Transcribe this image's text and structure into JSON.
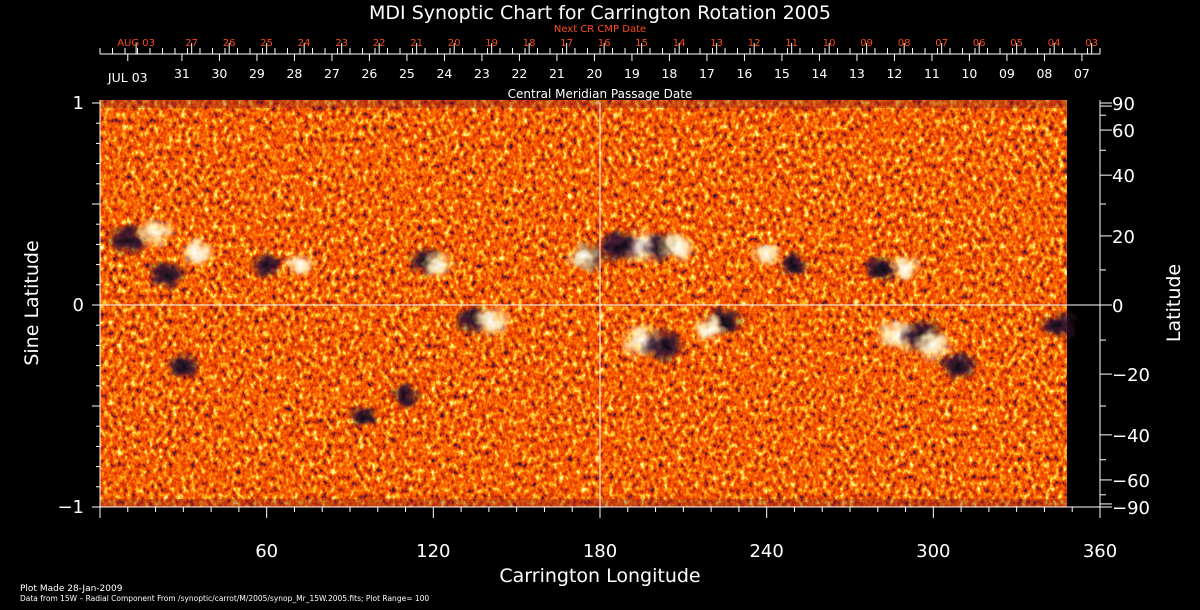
{
  "chart_data": {
    "type": "heatmap",
    "title": "MDI Synoptic Chart for Carrington Rotation 2005",
    "next_cr_label": "Next CR CMP Date",
    "cmp_label": "Central Meridian Passage Date",
    "xlabel": "Carrington Longitude",
    "ylabel_left": "Sine Latitude",
    "ylabel_right": "Latitude",
    "xlim": [
      0,
      360
    ],
    "ylim": [
      -1,
      1
    ],
    "x_ticks": [
      60,
      120,
      180,
      240,
      300,
      360
    ],
    "y_left_ticks": [
      {
        "value": 1,
        "label": "1"
      },
      {
        "value": 0,
        "label": "0"
      },
      {
        "value": -1,
        "label": "−1"
      }
    ],
    "y_right_ticks": [
      {
        "deg": 90,
        "label": "90"
      },
      {
        "deg": 60,
        "label": "60"
      },
      {
        "deg": 40,
        "label": "40"
      },
      {
        "deg": 20,
        "label": "20"
      },
      {
        "deg": 0,
        "label": "0"
      },
      {
        "deg": -20,
        "label": "−20"
      },
      {
        "deg": -40,
        "label": "−40"
      },
      {
        "deg": -60,
        "label": "−60"
      },
      {
        "deg": -90,
        "label": "−90"
      }
    ],
    "next_cr_dates": [
      {
        "lon": 13,
        "label": "AUG 03"
      },
      {
        "lon": 33,
        "label": "27"
      },
      {
        "lon": 46.5,
        "label": "26"
      },
      {
        "lon": 60,
        "label": "25"
      },
      {
        "lon": 73.5,
        "label": "24"
      },
      {
        "lon": 87,
        "label": "23"
      },
      {
        "lon": 100.5,
        "label": "22"
      },
      {
        "lon": 114,
        "label": "21"
      },
      {
        "lon": 127.5,
        "label": "20"
      },
      {
        "lon": 141,
        "label": "19"
      },
      {
        "lon": 154.5,
        "label": "18"
      },
      {
        "lon": 168,
        "label": "17"
      },
      {
        "lon": 181.5,
        "label": "16"
      },
      {
        "lon": 195,
        "label": "15"
      },
      {
        "lon": 208.5,
        "label": "14"
      },
      {
        "lon": 222,
        "label": "13"
      },
      {
        "lon": 235.5,
        "label": "12"
      },
      {
        "lon": 249,
        "label": "11"
      },
      {
        "lon": 262.5,
        "label": "10"
      },
      {
        "lon": 276,
        "label": "09"
      },
      {
        "lon": 289.5,
        "label": "08"
      },
      {
        "lon": 303,
        "label": "07"
      },
      {
        "lon": 316.5,
        "label": "06"
      },
      {
        "lon": 330,
        "label": "05"
      },
      {
        "lon": 343.5,
        "label": "04"
      },
      {
        "lon": 357,
        "label": "03"
      }
    ],
    "cmp_dates": [
      {
        "lon": 10,
        "label": "JUL 03"
      },
      {
        "lon": 29.5,
        "label": "31"
      },
      {
        "lon": 43,
        "label": "30"
      },
      {
        "lon": 56.5,
        "label": "29"
      },
      {
        "lon": 70,
        "label": "28"
      },
      {
        "lon": 83.5,
        "label": "27"
      },
      {
        "lon": 97,
        "label": "26"
      },
      {
        "lon": 110.5,
        "label": "25"
      },
      {
        "lon": 124,
        "label": "24"
      },
      {
        "lon": 137.5,
        "label": "23"
      },
      {
        "lon": 151,
        "label": "22"
      },
      {
        "lon": 164.5,
        "label": "21"
      },
      {
        "lon": 178,
        "label": "20"
      },
      {
        "lon": 191.5,
        "label": "19"
      },
      {
        "lon": 205,
        "label": "18"
      },
      {
        "lon": 218.5,
        "label": "17"
      },
      {
        "lon": 232,
        "label": "16"
      },
      {
        "lon": 245.5,
        "label": "15"
      },
      {
        "lon": 259,
        "label": "14"
      },
      {
        "lon": 272.5,
        "label": "13"
      },
      {
        "lon": 286,
        "label": "12"
      },
      {
        "lon": 299.5,
        "label": "11"
      },
      {
        "lon": 313,
        "label": "10"
      },
      {
        "lon": 326.5,
        "label": "09"
      },
      {
        "lon": 340,
        "label": "08"
      },
      {
        "lon": 353.5,
        "label": "07"
      }
    ],
    "data_coverage_lon": [
      0,
      348
    ],
    "active_regions": [
      {
        "lon": 195,
        "sinlat": 0.29,
        "polarity": "positive",
        "strength": 1.0
      },
      {
        "lon": 187,
        "sinlat": 0.29,
        "polarity": "negative",
        "strength": 1.0
      },
      {
        "lon": 202,
        "sinlat": 0.29,
        "polarity": "negative",
        "strength": 0.8
      },
      {
        "lon": 208,
        "sinlat": 0.29,
        "polarity": "positive",
        "strength": 0.8
      },
      {
        "lon": 195,
        "sinlat": -0.18,
        "polarity": "positive",
        "strength": 1.0
      },
      {
        "lon": 203,
        "sinlat": -0.2,
        "polarity": "negative",
        "strength": 1.0
      },
      {
        "lon": 135,
        "sinlat": -0.07,
        "polarity": "negative",
        "strength": 0.8
      },
      {
        "lon": 141,
        "sinlat": -0.08,
        "polarity": "positive",
        "strength": 0.8
      },
      {
        "lon": 176,
        "sinlat": 0.24,
        "polarity": "negative",
        "strength": 0.7
      },
      {
        "lon": 174,
        "sinlat": 0.24,
        "polarity": "positive",
        "strength": 0.7
      },
      {
        "lon": 287,
        "sinlat": -0.15,
        "polarity": "positive",
        "strength": 1.0
      },
      {
        "lon": 296,
        "sinlat": -0.15,
        "polarity": "negative",
        "strength": 1.0
      },
      {
        "lon": 300,
        "sinlat": -0.2,
        "polarity": "positive",
        "strength": 0.8
      },
      {
        "lon": 309,
        "sinlat": -0.3,
        "polarity": "negative",
        "strength": 0.8
      },
      {
        "lon": 281,
        "sinlat": 0.18,
        "polarity": "negative",
        "strength": 0.6
      },
      {
        "lon": 290,
        "sinlat": 0.18,
        "polarity": "positive",
        "strength": 0.6
      },
      {
        "lon": 117,
        "sinlat": 0.22,
        "polarity": "negative",
        "strength": 0.7
      },
      {
        "lon": 122,
        "sinlat": 0.2,
        "polarity": "positive",
        "strength": 0.6
      },
      {
        "lon": 60,
        "sinlat": 0.2,
        "polarity": "negative",
        "strength": 0.6
      },
      {
        "lon": 72,
        "sinlat": 0.2,
        "polarity": "positive",
        "strength": 0.5
      },
      {
        "lon": 10,
        "sinlat": 0.32,
        "polarity": "negative",
        "strength": 0.9
      },
      {
        "lon": 20,
        "sinlat": 0.36,
        "polarity": "positive",
        "strength": 0.8
      },
      {
        "lon": 24,
        "sinlat": 0.15,
        "polarity": "negative",
        "strength": 0.8
      },
      {
        "lon": 35,
        "sinlat": 0.26,
        "polarity": "positive",
        "strength": 0.7
      },
      {
        "lon": 30,
        "sinlat": -0.3,
        "polarity": "negative",
        "strength": 0.6
      },
      {
        "lon": 225,
        "sinlat": -0.08,
        "polarity": "negative",
        "strength": 0.8
      },
      {
        "lon": 219,
        "sinlat": -0.12,
        "polarity": "positive",
        "strength": 0.6
      },
      {
        "lon": 240,
        "sinlat": 0.25,
        "polarity": "positive",
        "strength": 0.5
      },
      {
        "lon": 250,
        "sinlat": 0.2,
        "polarity": "negative",
        "strength": 0.5
      },
      {
        "lon": 345,
        "sinlat": -0.1,
        "polarity": "negative",
        "strength": 0.7
      },
      {
        "lon": 110,
        "sinlat": -0.45,
        "polarity": "negative",
        "strength": 0.5
      },
      {
        "lon": 95,
        "sinlat": -0.55,
        "polarity": "negative",
        "strength": 0.5
      }
    ]
  },
  "footer": {
    "plot_made": "Plot Made 28-Jan-2009",
    "data_from": "Data from 15W – Radial Component From /synoptic/carrot/M/2005/synop_Mr_15W.2005.fits; Plot Range=  100"
  },
  "colors": {
    "background": "#000000",
    "field_base": "#f03a00",
    "field_mid": "#ff6a10",
    "positive": "#fff2c8",
    "negative": "#2a1236",
    "date_red": "#ff4a1a",
    "axis": "#ffffff"
  }
}
